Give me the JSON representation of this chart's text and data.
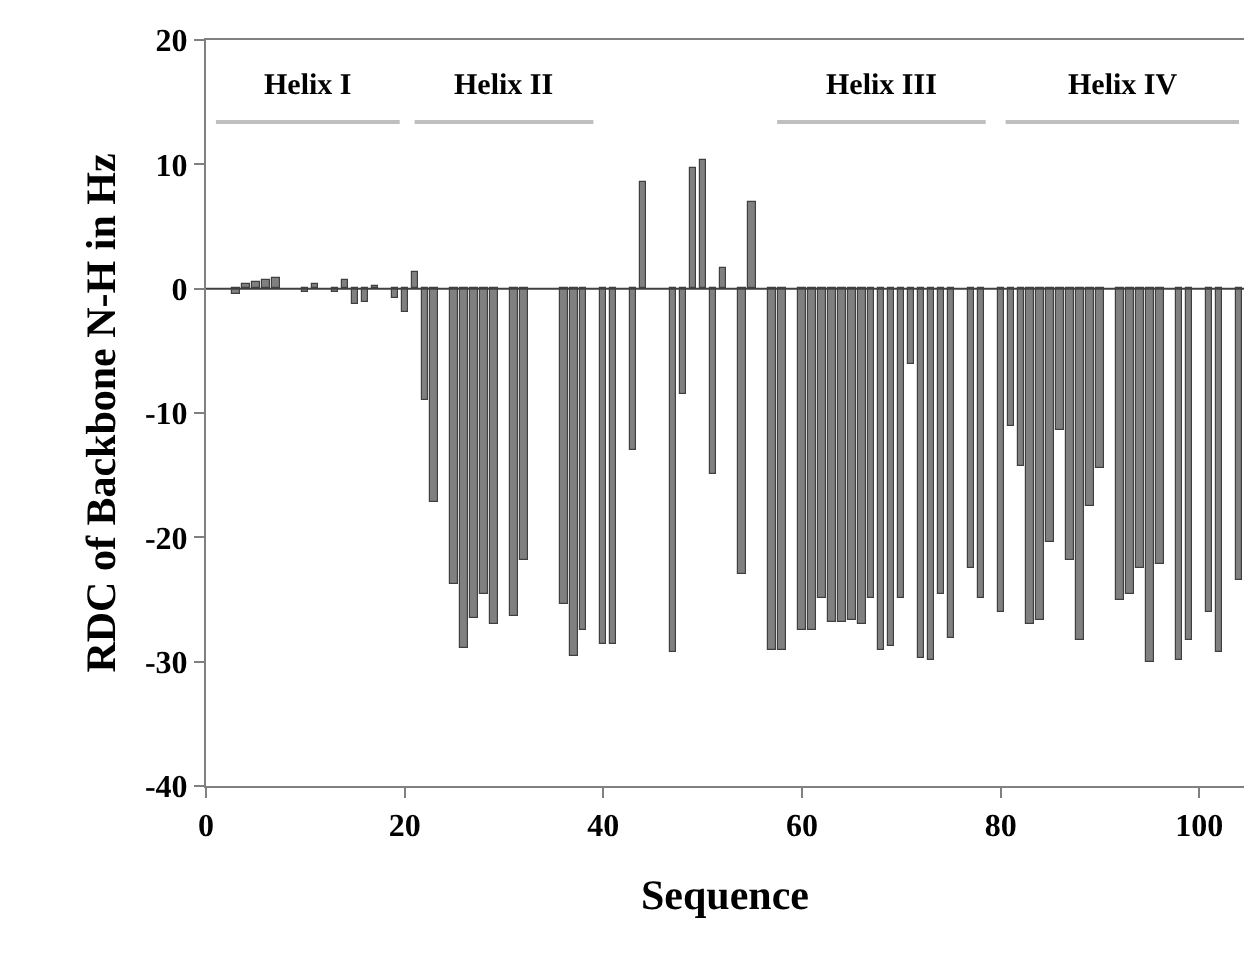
{
  "chart_data": {
    "type": "bar",
    "xlabel": "Sequence",
    "ylabel": "RDC of Backbone N-H in Hz",
    "grid": false,
    "legend": false,
    "series": [
      {
        "color": "#808080",
        "x": [
          3,
          4,
          5,
          6,
          7,
          10,
          11,
          13,
          14,
          15,
          16,
          17,
          19,
          20,
          21,
          22,
          23,
          25,
          26,
          27,
          28,
          29,
          31,
          32,
          36,
          37,
          38,
          40,
          41,
          43,
          44,
          47,
          48,
          49,
          50,
          51,
          52,
          54,
          55,
          57,
          58,
          60,
          61,
          62,
          63,
          64,
          65,
          66,
          67,
          68,
          69,
          70,
          71,
          72,
          73,
          74,
          75,
          77,
          78,
          80,
          81,
          82,
          83,
          84,
          85,
          86,
          87,
          88,
          89,
          90,
          92,
          93,
          94,
          95,
          96,
          98,
          99,
          101,
          102,
          104
        ],
        "values": [
          -0.5,
          0.4,
          0.6,
          0.7,
          0.8,
          -0.2,
          0.3,
          -0.3,
          0.7,
          -1.2,
          -1.1,
          0.2,
          -0.7,
          -1.8,
          1.3,
          -8.9,
          -17.2,
          -23.8,
          -28.9,
          -26.5,
          -24.5,
          -27,
          -26.3,
          -21.8,
          -25.4,
          -29.6,
          -27.5,
          -28.5,
          -28.5,
          -13,
          8.6,
          -29.3,
          -8.5,
          9.7,
          10.3,
          -14.9,
          1.6,
          -22.9,
          7,
          -29.1,
          -29,
          -27.5,
          -27.5,
          -24.8,
          -26.8,
          -26.8,
          -26.6,
          -26.9,
          -24.8,
          -29.1,
          -28.7,
          -24.8,
          -6.1,
          -29.7,
          -29.8,
          -24.5,
          -28.1,
          -22.5,
          -24.8,
          -26,
          -11.1,
          -14.3,
          -27,
          -26.6,
          -20.3,
          -11.4,
          -21.9,
          -28.3,
          -17.5,
          -14.4,
          -25,
          -24.5,
          -22.5,
          -30.1,
          -22.2,
          -29.8,
          -28.3,
          -26,
          -29.3,
          -23.5
        ]
      },
      {
        "type": "line",
        "name": "Helix I",
        "color": "#bfbfbf",
        "x": [
          1,
          19.5
        ],
        "values": [
          13.4,
          13.4
        ]
      },
      {
        "type": "line",
        "name": "Helix II",
        "color": "#bfbfbf",
        "x": [
          21,
          39
        ],
        "values": [
          13.4,
          13.4
        ]
      },
      {
        "type": "line",
        "name": "Helix III",
        "color": "#bfbfbf",
        "x": [
          57.5,
          78.5
        ],
        "values": [
          13.4,
          13.4
        ]
      },
      {
        "type": "line",
        "name": "Helix IV",
        "color": "#bfbfbf",
        "x": [
          80.5,
          104
        ],
        "values": [
          13.4,
          13.4
        ]
      }
    ],
    "xlim": [
      0,
      104.5
    ],
    "xticks": [
      0,
      20,
      40,
      60,
      80,
      100
    ],
    "ylim": [
      -40,
      20
    ],
    "yticks": [
      -40,
      -30,
      -20,
      -10,
      0,
      10,
      20
    ],
    "ref_lines": [
      {
        "axis": "y",
        "value": 0,
        "color": "#404040"
      }
    ]
  }
}
